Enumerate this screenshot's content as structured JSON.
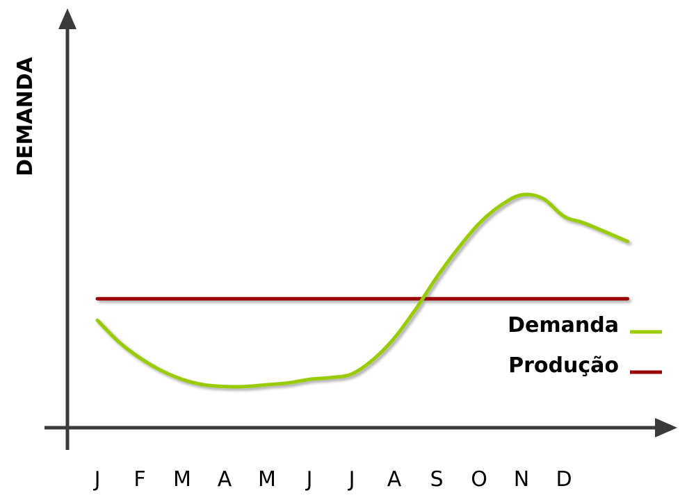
{
  "chart_data": {
    "type": "line",
    "title": "",
    "xlabel": "",
    "ylabel": "DEMANDA",
    "categories": [
      "J",
      "F",
      "M",
      "A",
      "M",
      "J",
      "J",
      "A",
      "S",
      "O",
      "N",
      "D"
    ],
    "ylim": [
      0,
      100
    ],
    "grid": false,
    "legend": "right",
    "series": [
      {
        "name": "Demanda",
        "color": "#99cc00",
        "x": [
          0.0,
          0.5,
          1.0,
          1.5,
          2.0,
          2.5,
          3.0,
          3.5,
          4.0,
          4.5,
          5.0,
          5.5,
          6.0,
          6.5,
          7.0,
          7.5,
          8.0,
          8.5,
          9.0,
          9.5,
          10.0,
          10.5,
          11.0,
          11.5,
          12.5
        ],
        "values": [
          30,
          24,
          19.5,
          16,
          13.5,
          12,
          11.5,
          11.5,
          12,
          12.5,
          13.5,
          14,
          15,
          19,
          25,
          33,
          42,
          50,
          57,
          62,
          65,
          64,
          59,
          57,
          52
        ]
      },
      {
        "name": "Produção",
        "color": "#990000",
        "x": [
          0,
          12.5
        ],
        "values": [
          36,
          36
        ]
      }
    ]
  }
}
